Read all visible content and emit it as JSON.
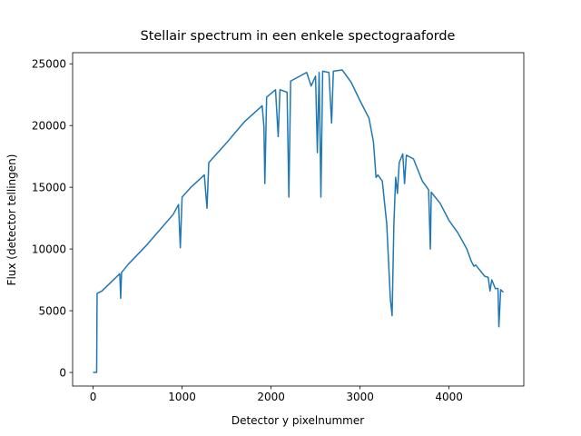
{
  "chart_data": {
    "type": "line",
    "title": "Stellair spectrum in een enkele spectograaforde",
    "x_label": "Detector y pixelnummer",
    "y_label": "Flux (detector tellingen)",
    "x": [
      0,
      40,
      45,
      100,
      300,
      310,
      320,
      400,
      600,
      900,
      960,
      980,
      1000,
      1100,
      1250,
      1280,
      1300,
      1500,
      1700,
      1900,
      1920,
      1930,
      1950,
      2050,
      2080,
      2100,
      2180,
      2200,
      2220,
      2400,
      2450,
      2500,
      2520,
      2540,
      2560,
      2580,
      2650,
      2680,
      2700,
      2800,
      2900,
      3000,
      3100,
      3150,
      3180,
      3200,
      3250,
      3300,
      3340,
      3360,
      3380,
      3400,
      3420,
      3440,
      3480,
      3500,
      3520,
      3600,
      3700,
      3770,
      3790,
      3800,
      3900,
      4000,
      4100,
      4200,
      4250,
      4280,
      4300,
      4400,
      4440,
      4460,
      4480,
      4520,
      4550,
      4560,
      4580,
      4610
    ],
    "series": [
      {
        "name": "flux",
        "color": "#1f77b4",
        "values": [
          0,
          0,
          6400,
          6600,
          8000,
          6000,
          8100,
          8800,
          10300,
          12800,
          13600,
          10100,
          14200,
          15000,
          16000,
          13300,
          17000,
          18600,
          20300,
          21600,
          19900,
          15300,
          22300,
          22900,
          19100,
          22900,
          22700,
          14200,
          23600,
          24300,
          23200,
          24000,
          17800,
          24300,
          14200,
          24400,
          24300,
          20200,
          24400,
          24500,
          23500,
          22000,
          20600,
          18700,
          15800,
          16000,
          15500,
          12000,
          6000,
          4600,
          12000,
          15800,
          14500,
          17000,
          17700,
          15300,
          17600,
          17300,
          15500,
          14800,
          10000,
          14600,
          13700,
          12300,
          11300,
          10000,
          9000,
          8600,
          8700,
          7800,
          7700,
          6600,
          7500,
          6800,
          6800,
          3700,
          6700,
          6500
        ]
      }
    ],
    "xlim": [
      -230,
      4840
    ],
    "ylim": [
      -1100,
      25900
    ],
    "xticks": [
      0,
      1000,
      2000,
      3000,
      4000
    ],
    "yticks": [
      0,
      5000,
      10000,
      15000,
      20000,
      25000
    ]
  }
}
